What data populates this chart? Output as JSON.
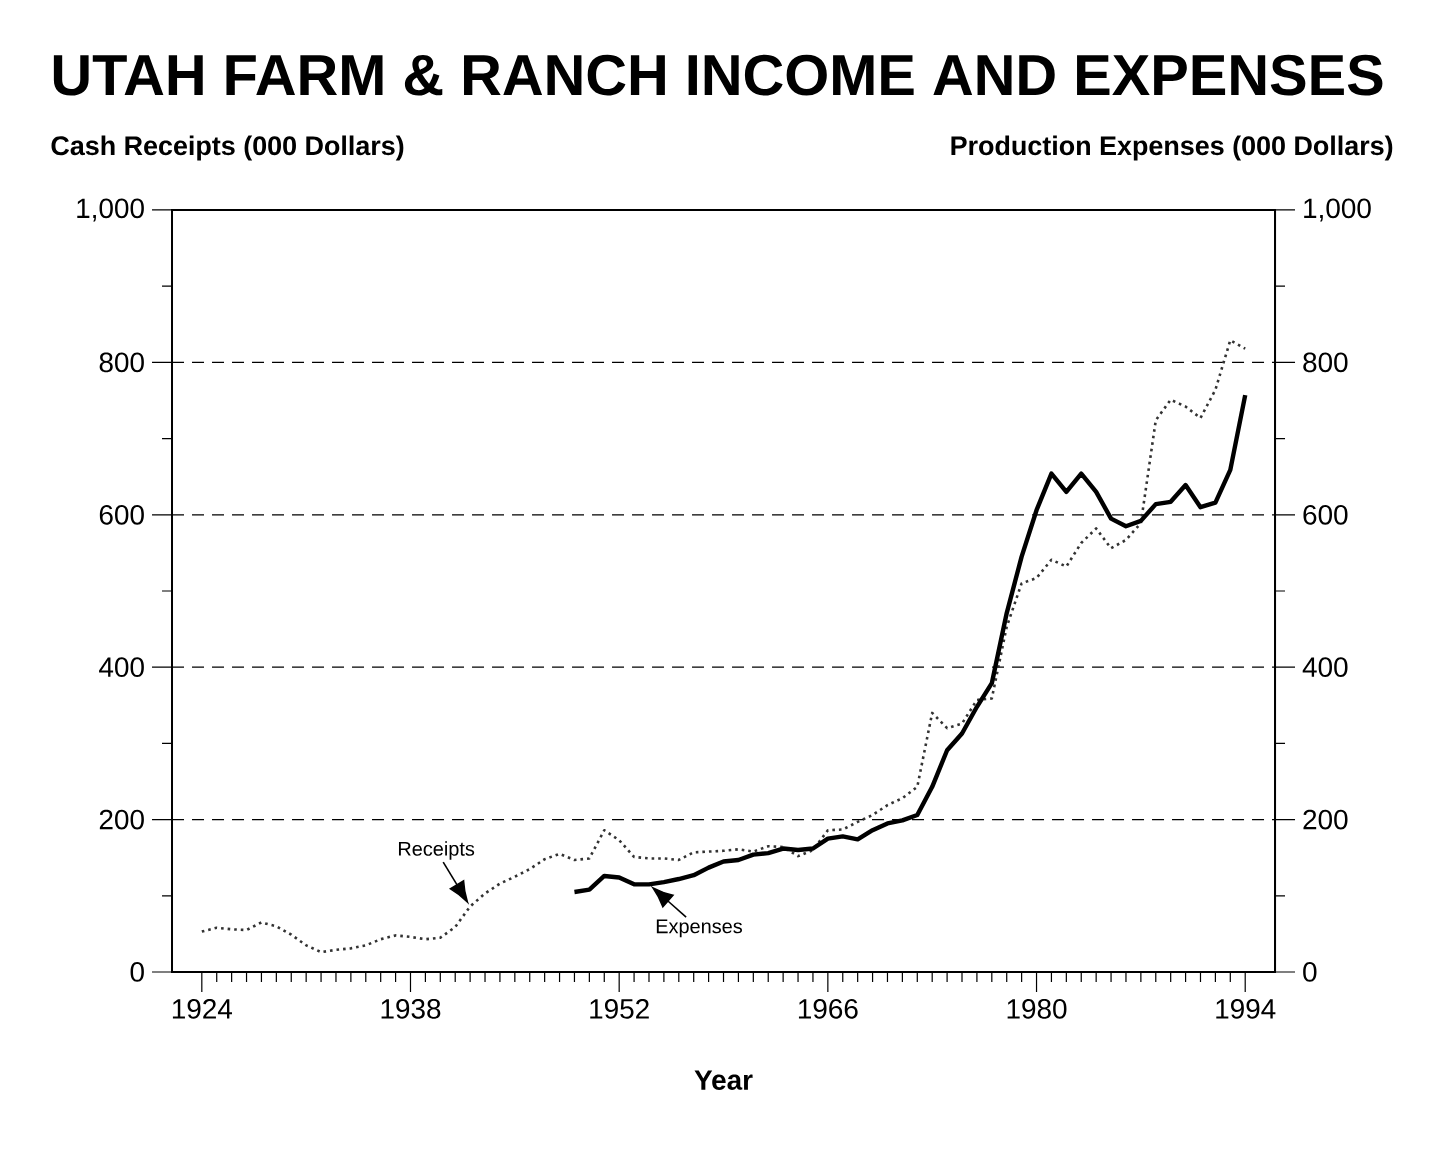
{
  "chart_data": {
    "type": "line",
    "title": "UTAH FARM & RANCH INCOME AND EXPENSES",
    "ylabel": "Cash Receipts (000 Dollars)",
    "y2label": "Production Expenses (000 Dollars)",
    "xlabel": "Year",
    "xlim": [
      1922,
      1996
    ],
    "ylim": [
      0,
      1000
    ],
    "y2lim": [
      0,
      1000
    ],
    "xticks": [
      1924,
      {
        "value": 1925,
        "label": null
      },
      {
        "value": 1926,
        "label": null
      },
      {
        "value": 1927,
        "label": null
      },
      {
        "value": 1928,
        "label": null
      },
      {
        "value": 1929,
        "label": null
      },
      {
        "value": 1930,
        "label": null
      },
      {
        "value": 1931,
        "label": null
      },
      {
        "value": 1932,
        "label": null
      },
      {
        "value": 1933,
        "label": null
      },
      {
        "value": 1934,
        "label": null
      },
      {
        "value": 1935,
        "label": null
      },
      {
        "value": 1936,
        "label": null
      },
      {
        "value": 1937,
        "label": null
      },
      1938,
      {
        "value": 1939,
        "label": null
      },
      {
        "value": 1940,
        "label": null
      },
      {
        "value": 1941,
        "label": null
      },
      {
        "value": 1942,
        "label": null
      },
      {
        "value": 1943,
        "label": null
      },
      {
        "value": 1944,
        "label": null
      },
      {
        "value": 1945,
        "label": null
      },
      {
        "value": 1946,
        "label": null
      },
      {
        "value": 1947,
        "label": null
      },
      {
        "value": 1948,
        "label": null
      },
      {
        "value": 1949,
        "label": null
      },
      {
        "value": 1950,
        "label": null
      },
      {
        "value": 1951,
        "label": null
      },
      1952,
      {
        "value": 1953,
        "label": null
      },
      {
        "value": 1954,
        "label": null
      },
      {
        "value": 1955,
        "label": null
      },
      {
        "value": 1956,
        "label": null
      },
      {
        "value": 1957,
        "label": null
      },
      {
        "value": 1958,
        "label": null
      },
      {
        "value": 1959,
        "label": null
      },
      {
        "value": 1960,
        "label": null
      },
      {
        "value": 1961,
        "label": null
      },
      {
        "value": 1962,
        "label": null
      },
      {
        "value": 1963,
        "label": null
      },
      {
        "value": 1964,
        "label": null
      },
      {
        "value": 1965,
        "label": null
      },
      1966,
      {
        "value": 1967,
        "label": null
      },
      {
        "value": 1968,
        "label": null
      },
      {
        "value": 1969,
        "label": null
      },
      {
        "value": 1970,
        "label": null
      },
      {
        "value": 1971,
        "label": null
      },
      {
        "value": 1972,
        "label": null
      },
      {
        "value": 1973,
        "label": null
      },
      {
        "value": 1974,
        "label": null
      },
      {
        "value": 1975,
        "label": null
      },
      {
        "value": 1976,
        "label": null
      },
      {
        "value": 1977,
        "label": null
      },
      {
        "value": 1978,
        "label": null
      },
      {
        "value": 1979,
        "label": null
      },
      1980,
      {
        "value": 1981,
        "label": null
      },
      {
        "value": 1982,
        "label": null
      },
      {
        "value": 1983,
        "label": null
      },
      {
        "value": 1984,
        "label": null
      },
      {
        "value": 1985,
        "label": null
      },
      {
        "value": 1986,
        "label": null
      },
      {
        "value": 1987,
        "label": null
      },
      {
        "value": 1988,
        "label": null
      },
      {
        "value": 1989,
        "label": null
      },
      {
        "value": 1990,
        "label": null
      },
      {
        "value": 1991,
        "label": null
      },
      {
        "value": 1992,
        "label": null
      },
      {
        "value": 1993,
        "label": null
      },
      1994
    ],
    "yticks": [
      0,
      {
        "value": 100,
        "label": null
      },
      200,
      {
        "value": 300,
        "label": null
      },
      400,
      {
        "value": 500,
        "label": null
      },
      600,
      {
        "value": 700,
        "label": null
      },
      800,
      {
        "value": 900,
        "label": null
      },
      {
        "value": 1000,
        "label": "1,000"
      }
    ],
    "y2ticks": [
      0,
      {
        "value": 100,
        "label": null
      },
      200,
      {
        "value": 300,
        "label": null
      },
      400,
      {
        "value": 500,
        "label": null
      },
      600,
      {
        "value": 700,
        "label": null
      },
      800,
      {
        "value": 900,
        "label": null
      },
      {
        "value": 1000,
        "label": "1,000"
      }
    ],
    "grid": "y",
    "series": [
      {
        "color": "#333333",
        "line_style": "dotted",
        "x": [
          1924,
          1925,
          1926,
          1927,
          1928,
          1929,
          1930,
          1931,
          1932,
          1933,
          1934,
          1935,
          1936,
          1937,
          1938,
          1939,
          1940,
          1941,
          1942,
          1943,
          1944,
          1945,
          1946,
          1947,
          1948,
          1949,
          1950,
          1951,
          1952,
          1953,
          1954,
          1955,
          1956,
          1957,
          1958,
          1959,
          1960,
          1961,
          1962,
          1963,
          1964,
          1965,
          1966,
          1967,
          1968,
          1969,
          1970,
          1971,
          1972,
          1973,
          1974,
          1975,
          1976,
          1977,
          1978,
          1979,
          1980,
          1981,
          1982,
          1983,
          1984,
          1985,
          1986,
          1987,
          1988,
          1989,
          1990,
          1991,
          1992,
          1993,
          1994
        ],
        "values": [
          53,
          58,
          56,
          55,
          65,
          60,
          49,
          35,
          26,
          29,
          31,
          35,
          43,
          48,
          46,
          43,
          45,
          59,
          86,
          103,
          116,
          125,
          135,
          148,
          155,
          147,
          149,
          186,
          173,
          151,
          149,
          149,
          147,
          157,
          158,
          159,
          161,
          158,
          165,
          164,
          152,
          160,
          186,
          187,
          197,
          206,
          219,
          228,
          243,
          340,
          320,
          326,
          357,
          359,
          453,
          510,
          517,
          541,
          532,
          563,
          582,
          556,
          567,
          589,
          724,
          751,
          742,
          727,
          764,
          829,
          818
        ]
      },
      {
        "color": "#000000",
        "line_style": "solid",
        "axis": "y2",
        "x": [
          1949,
          1950,
          1951,
          1952,
          1953,
          1954,
          1955,
          1956,
          1957,
          1958,
          1959,
          1960,
          1961,
          1962,
          1963,
          1964,
          1965,
          1966,
          1967,
          1968,
          1969,
          1970,
          1971,
          1972,
          1973,
          1974,
          1975,
          1976,
          1977,
          1978,
          1979,
          1980,
          1981,
          1982,
          1983,
          1984,
          1985,
          1986,
          1987,
          1988,
          1989,
          1990,
          1991,
          1992,
          1993,
          1994
        ],
        "values": [
          105,
          108,
          126,
          124,
          115,
          115,
          118,
          122,
          127,
          137,
          145,
          147,
          154,
          156,
          162,
          160,
          162,
          175,
          178,
          174,
          186,
          195,
          199,
          206,
          243,
          291,
          313,
          348,
          379,
          471,
          545,
          606,
          654,
          630,
          654,
          630,
          595,
          585,
          592,
          614,
          617,
          639,
          610,
          616,
          659,
          757
        ]
      }
    ],
    "annotations": [
      {
        "text": "Receipts",
        "x": 1942,
        "y": 86
      },
      {
        "text": "Expenses",
        "x": 1954,
        "y": 115
      }
    ]
  }
}
